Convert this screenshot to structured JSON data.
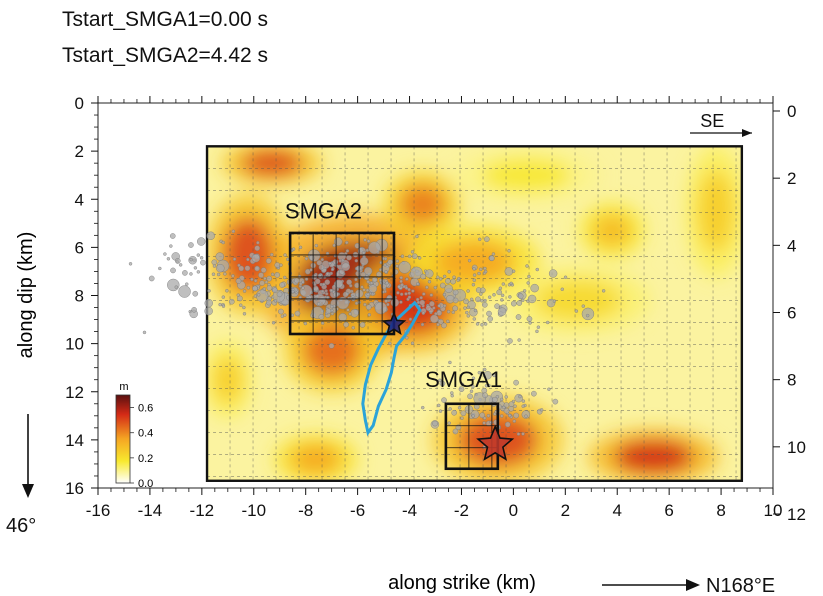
{
  "header": {
    "line1": "Tstart_SMGA1=0.00 s",
    "line2": "Tstart_SMGA2=4.42 s"
  },
  "chart_data": {
    "type": "heatmap",
    "title": "",
    "xlabel": "along strike (km)",
    "ylabel": "along dip (km)",
    "xlim": [
      -16,
      10
    ],
    "ylim_left": [
      0,
      16
    ],
    "ylim_right": [
      0,
      12
    ],
    "y_inverted": true,
    "x_ticks": [
      -16,
      -14,
      -12,
      -10,
      -8,
      -6,
      -4,
      -2,
      0,
      2,
      4,
      6,
      8,
      10
    ],
    "y_ticks_left": [
      0,
      2,
      4,
      6,
      8,
      10,
      12,
      14,
      16
    ],
    "y_ticks_right": [
      0,
      2,
      4,
      6,
      8,
      10,
      12
    ],
    "grid": true,
    "fault_extent": {
      "x": [
        -11.8,
        8.8
      ],
      "y": [
        1.8,
        15.7
      ]
    },
    "colorbar": {
      "label": "m",
      "ticks": [
        "0.0",
        "0.2",
        "0.4",
        "0.6"
      ],
      "range": [
        0.0,
        0.7
      ],
      "colors": [
        "#ffffff",
        "#f8e92e",
        "#f5a623",
        "#d42a16",
        "#5a1010"
      ]
    },
    "slip_patches": [
      {
        "x": -6.0,
        "y": 7.6,
        "rx": 3.4,
        "ry": 2.6,
        "slip": 0.62
      },
      {
        "x": -3.8,
        "y": 8.3,
        "rx": 2.0,
        "ry": 1.8,
        "slip": 0.55
      },
      {
        "x": -10.2,
        "y": 6.3,
        "rx": 1.4,
        "ry": 2.2,
        "slip": 0.5
      },
      {
        "x": -9.3,
        "y": 2.5,
        "rx": 1.7,
        "ry": 0.8,
        "slip": 0.5
      },
      {
        "x": -3.5,
        "y": 4.2,
        "rx": 1.3,
        "ry": 1.2,
        "slip": 0.42
      },
      {
        "x": -7.0,
        "y": 10.3,
        "rx": 1.6,
        "ry": 1.5,
        "slip": 0.45
      },
      {
        "x": -0.6,
        "y": 14.0,
        "rx": 2.2,
        "ry": 1.6,
        "slip": 0.5
      },
      {
        "x": 5.4,
        "y": 14.7,
        "rx": 2.2,
        "ry": 1.0,
        "slip": 0.55
      },
      {
        "x": -7.6,
        "y": 14.8,
        "rx": 1.4,
        "ry": 0.9,
        "slip": 0.35
      },
      {
        "x": 3.8,
        "y": 5.3,
        "rx": 1.1,
        "ry": 1.0,
        "slip": 0.3
      },
      {
        "x": -1.5,
        "y": 6.6,
        "rx": 2.2,
        "ry": 1.3,
        "slip": 0.35
      },
      {
        "x": 2.5,
        "y": 8.2,
        "rx": 2.4,
        "ry": 1.2,
        "slip": 0.22
      },
      {
        "x": 7.8,
        "y": 4.5,
        "rx": 1.0,
        "ry": 2.4,
        "slip": 0.25
      },
      {
        "x": -11.0,
        "y": 11.5,
        "rx": 0.8,
        "ry": 1.4,
        "slip": 0.25
      },
      {
        "x": 0.5,
        "y": 3.0,
        "rx": 2.5,
        "ry": 1.0,
        "slip": 0.18
      }
    ],
    "smga_boxes": [
      {
        "name": "SMGA2",
        "x": [
          -8.6,
          -4.6
        ],
        "y": [
          5.4,
          9.6
        ]
      },
      {
        "name": "SMGA1",
        "x": [
          -2.6,
          -0.6
        ],
        "y": [
          12.5,
          15.2
        ]
      }
    ],
    "hypocenters": [
      {
        "name": "SMGA1",
        "x": -0.7,
        "y": 14.2,
        "size": "large",
        "color": "#c0392b"
      },
      {
        "name": "SMGA2",
        "x": -4.6,
        "y": 9.2,
        "size": "small",
        "color": "#1a237e"
      }
    ],
    "contour_curve": [
      [
        -4.6,
        9.1
      ],
      [
        -4.9,
        9.6
      ],
      [
        -5.2,
        10.2
      ],
      [
        -5.5,
        10.9
      ],
      [
        -5.7,
        11.7
      ],
      [
        -5.8,
        12.5
      ],
      [
        -5.7,
        13.2
      ],
      [
        -5.6,
        13.7
      ],
      [
        -5.4,
        13.4
      ],
      [
        -5.2,
        12.6
      ],
      [
        -4.9,
        11.9
      ],
      [
        -4.7,
        11.2
      ],
      [
        -4.6,
        10.6
      ],
      [
        -4.5,
        10.1
      ],
      [
        -4.2,
        9.7
      ],
      [
        -3.9,
        9.2
      ],
      [
        -3.6,
        8.6
      ],
      [
        -3.8,
        8.3
      ],
      [
        -4.1,
        8.6
      ],
      [
        -4.4,
        8.9
      ],
      [
        -4.6,
        9.1
      ]
    ],
    "annotations": [
      {
        "text": "SMGA2",
        "x": -8.8,
        "y": 4.8
      },
      {
        "text": "SMGA1",
        "x": -3.4,
        "y": 11.8
      },
      {
        "text": "SE",
        "x": 7.2,
        "y": 1.0
      },
      {
        "text": "46°",
        "x": -16.8,
        "y": 17.1
      },
      {
        "text": "N168°E",
        "x": 9.2,
        "y": 19.4
      }
    ],
    "aftershock_count_approx": 700
  }
}
